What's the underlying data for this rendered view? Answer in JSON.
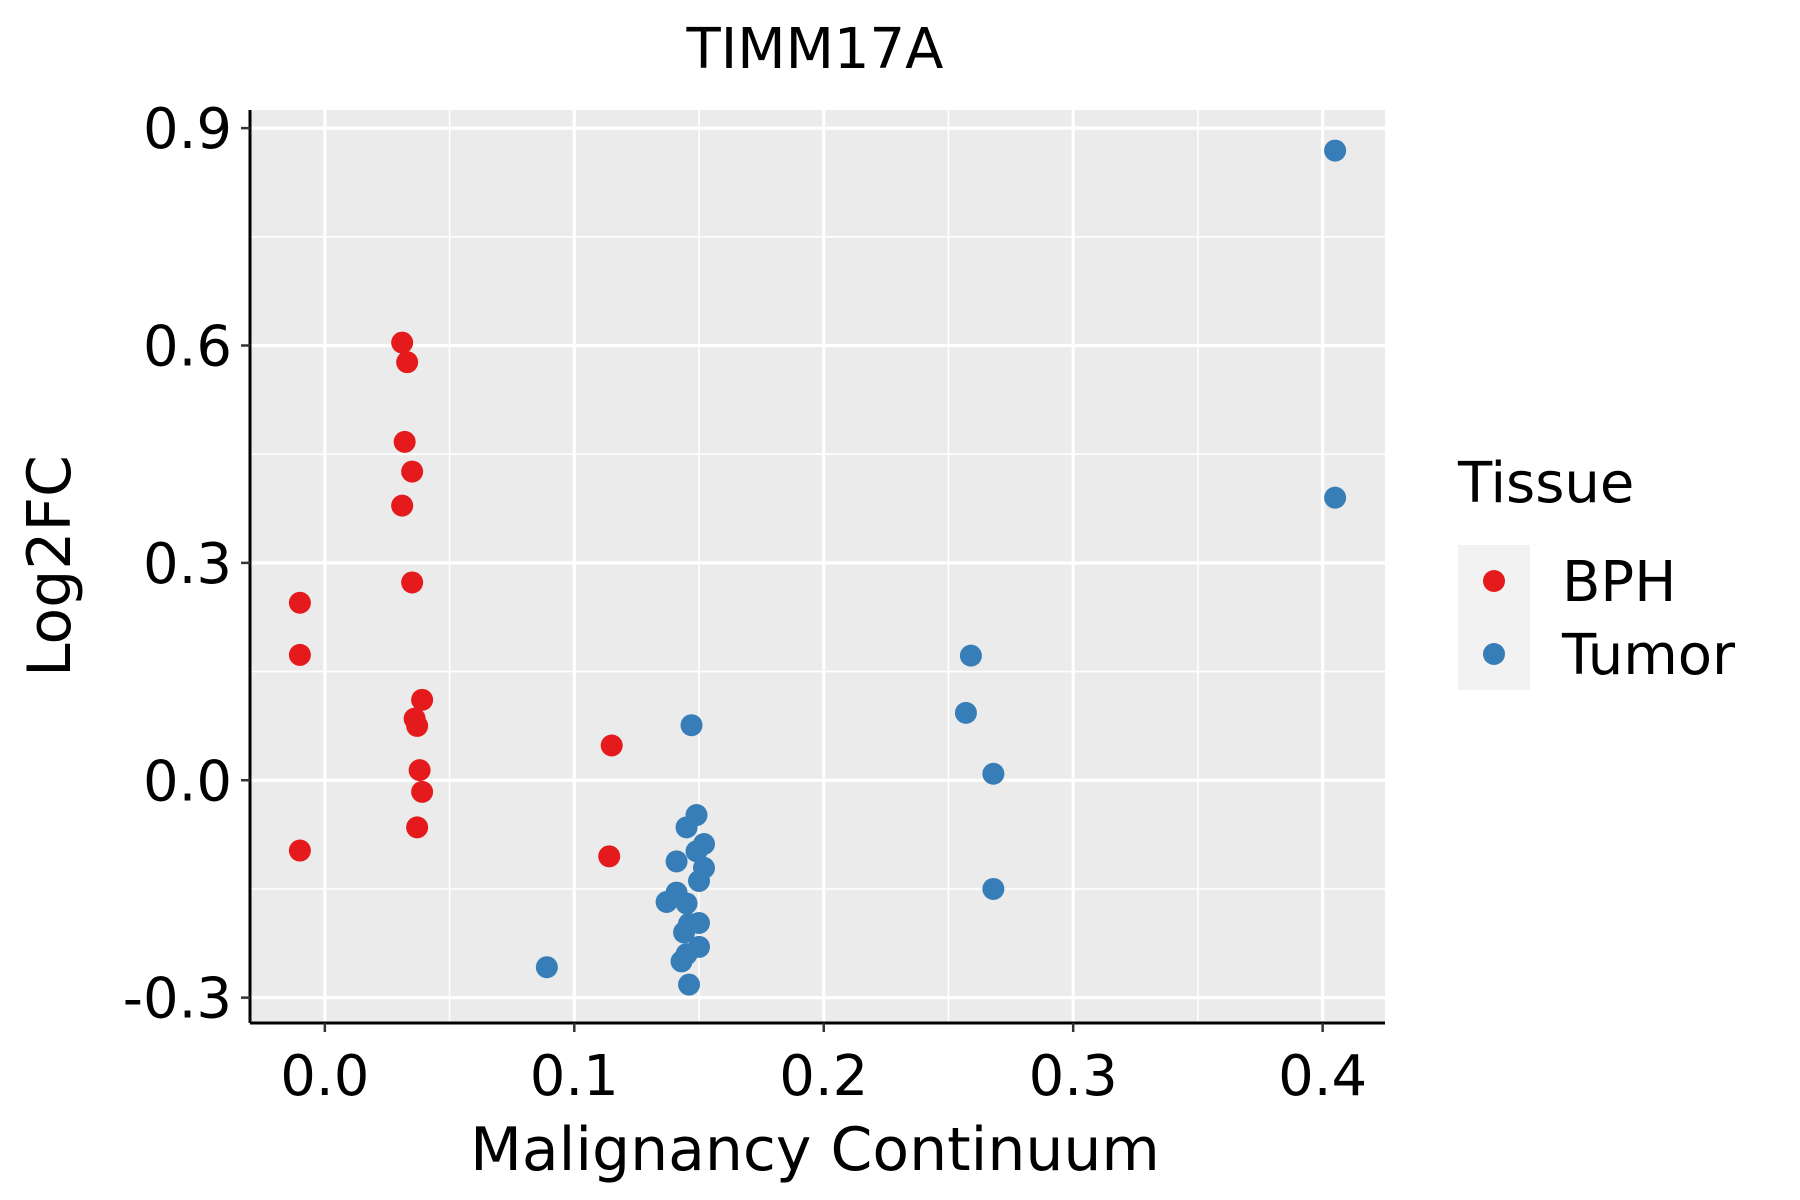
{
  "chart_data": {
    "type": "scatter",
    "title": "TIMM17A",
    "xlabel": "Malignancy Continuum",
    "ylabel": "Log2FC",
    "xlim": [
      -0.03,
      0.425
    ],
    "ylim": [
      -0.335,
      0.925
    ],
    "xticks": [
      0.0,
      0.1,
      0.2,
      0.3,
      0.4
    ],
    "xtick_labels": [
      "0.0",
      "0.1",
      "0.2",
      "0.3",
      "0.4"
    ],
    "yticks": [
      -0.3,
      0.0,
      0.3,
      0.6,
      0.9
    ],
    "ytick_labels": [
      "-0.3",
      "0.0",
      "0.3",
      "0.6",
      "0.9"
    ],
    "grid": true,
    "legend": {
      "title": "Tissue",
      "placement": "right",
      "entries": [
        {
          "name": "BPH",
          "color": "#E41A1C"
        },
        {
          "name": "Tumor",
          "color": "#377EB8"
        }
      ]
    },
    "series": [
      {
        "name": "BPH",
        "color": "#E41A1C",
        "points": [
          {
            "x": -0.01,
            "y": 0.245
          },
          {
            "x": -0.01,
            "y": 0.173
          },
          {
            "x": -0.01,
            "y": -0.097
          },
          {
            "x": 0.031,
            "y": 0.604
          },
          {
            "x": 0.033,
            "y": 0.577
          },
          {
            "x": 0.032,
            "y": 0.467
          },
          {
            "x": 0.035,
            "y": 0.426
          },
          {
            "x": 0.031,
            "y": 0.379
          },
          {
            "x": 0.035,
            "y": 0.273
          },
          {
            "x": 0.039,
            "y": 0.111
          },
          {
            "x": 0.036,
            "y": 0.085
          },
          {
            "x": 0.037,
            "y": 0.075
          },
          {
            "x": 0.038,
            "y": 0.014
          },
          {
            "x": 0.039,
            "y": -0.016
          },
          {
            "x": 0.037,
            "y": -0.065
          },
          {
            "x": 0.115,
            "y": 0.048
          },
          {
            "x": 0.114,
            "y": -0.105
          }
        ]
      },
      {
        "name": "Tumor",
        "color": "#377EB8",
        "points": [
          {
            "x": 0.405,
            "y": 0.869
          },
          {
            "x": 0.405,
            "y": 0.39
          },
          {
            "x": 0.259,
            "y": 0.172
          },
          {
            "x": 0.257,
            "y": 0.093
          },
          {
            "x": 0.268,
            "y": 0.009
          },
          {
            "x": 0.268,
            "y": -0.15
          },
          {
            "x": 0.147,
            "y": 0.076
          },
          {
            "x": 0.149,
            "y": -0.048
          },
          {
            "x": 0.145,
            "y": -0.065
          },
          {
            "x": 0.152,
            "y": -0.088
          },
          {
            "x": 0.149,
            "y": -0.098
          },
          {
            "x": 0.141,
            "y": -0.112
          },
          {
            "x": 0.152,
            "y": -0.121
          },
          {
            "x": 0.15,
            "y": -0.139
          },
          {
            "x": 0.141,
            "y": -0.155
          },
          {
            "x": 0.137,
            "y": -0.168
          },
          {
            "x": 0.145,
            "y": -0.17
          },
          {
            "x": 0.15,
            "y": -0.197
          },
          {
            "x": 0.146,
            "y": -0.198
          },
          {
            "x": 0.144,
            "y": -0.21
          },
          {
            "x": 0.15,
            "y": -0.23
          },
          {
            "x": 0.145,
            "y": -0.24
          },
          {
            "x": 0.143,
            "y": -0.25
          },
          {
            "x": 0.089,
            "y": -0.258
          },
          {
            "x": 0.146,
            "y": -0.282
          }
        ]
      }
    ]
  }
}
